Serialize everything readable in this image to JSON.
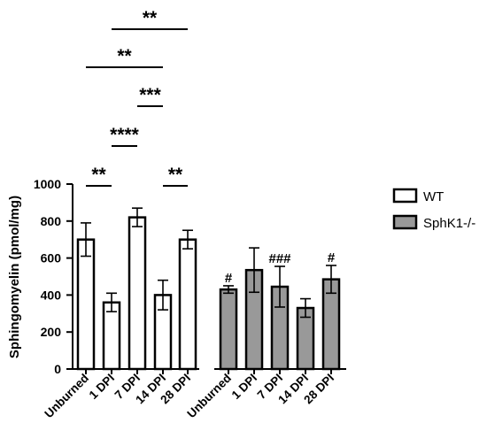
{
  "chart_data": {
    "type": "bar",
    "ylabel": "Sphingomyelin (pmol/mg)",
    "xlabel": "",
    "ylim": [
      0,
      1000
    ],
    "yticks": [
      0,
      200,
      400,
      600,
      800,
      1000
    ],
    "legend_position": "right",
    "series": [
      {
        "name": "WT",
        "color": "#ffffff",
        "categories": [
          "Unburned",
          "1 DPI",
          "7 DPI",
          "14 DPI",
          "28 DPI"
        ],
        "values": [
          700,
          360,
          820,
          400,
          700
        ],
        "errors": [
          90,
          50,
          50,
          80,
          50
        ],
        "markers": [
          "",
          "",
          "",
          "",
          ""
        ]
      },
      {
        "name": "SphK1-/-",
        "color": "#999999",
        "categories": [
          "Unburned",
          "1 DPI",
          "7 DPI",
          "14 DPI",
          "28 DPI"
        ],
        "values": [
          430,
          535,
          445,
          330,
          485
        ],
        "errors": [
          20,
          120,
          110,
          50,
          75
        ],
        "markers": [
          "#",
          "",
          "###",
          "",
          "#"
        ]
      }
    ],
    "significance": [
      {
        "from": 0,
        "to": 1,
        "label": "**",
        "level": 210
      },
      {
        "from": 3,
        "to": 4,
        "label": "**",
        "level": 210
      },
      {
        "from": 1,
        "to": 2,
        "label": "****",
        "level": 165
      },
      {
        "from": 2,
        "to": 3,
        "label": "***",
        "level": 120
      },
      {
        "from": 0,
        "to": 3,
        "label": "**",
        "level": 76
      },
      {
        "from": 1,
        "to": 4,
        "label": "**",
        "level": 33
      }
    ]
  }
}
